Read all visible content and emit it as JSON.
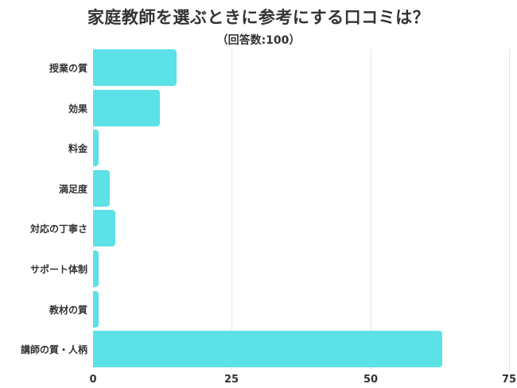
{
  "title": "家庭教師を選ぶときに参考にする口コミは？",
  "subtitle": "（回答数:100）",
  "colors": {
    "bar": "#5ce1e6",
    "text": "#333333",
    "grid": "#e4e4e4"
  },
  "chart_data": {
    "type": "bar",
    "orientation": "horizontal",
    "title": "家庭教師を選ぶときに参考にする口コミは？",
    "subtitle": "（回答数:100）",
    "categories": [
      "授業の質",
      "効果",
      "料金",
      "満足度",
      "対応の丁寧さ",
      "サポート体制",
      "教材の質",
      "講師の質・人柄"
    ],
    "values": [
      15,
      12,
      1,
      3,
      4,
      1,
      1,
      63
    ],
    "xlabel": "",
    "ylabel": "",
    "xlim": [
      0,
      75
    ],
    "xticks": [
      "0",
      "25",
      "50",
      "75"
    ],
    "grid": true,
    "legend": null
  }
}
